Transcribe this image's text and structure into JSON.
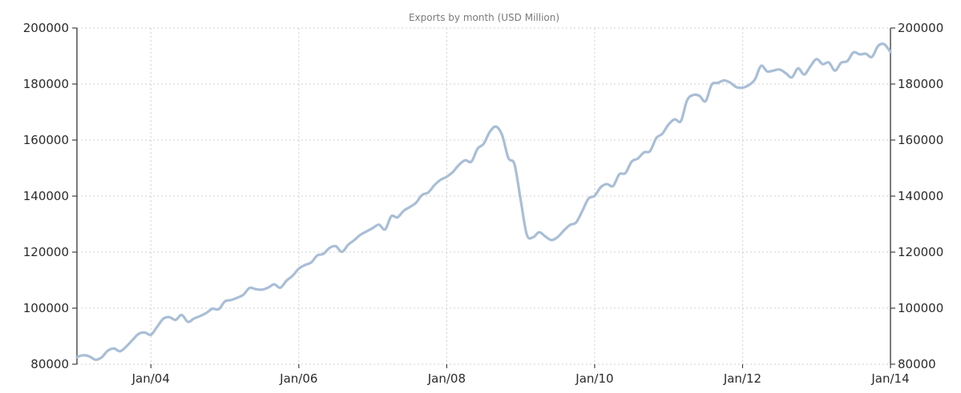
{
  "chart_data": {
    "type": "line",
    "title": "Exports by month (USD Million)",
    "xlabel": "",
    "ylabel": "",
    "xlim": [
      "2003-01",
      "2014-01"
    ],
    "ylim": [
      80000,
      200000
    ],
    "y_ticks": [
      80000,
      100000,
      120000,
      140000,
      160000,
      180000,
      200000
    ],
    "y_tick_labels": [
      "80000",
      "100000",
      "120000",
      "140000",
      "160000",
      "180000",
      "200000"
    ],
    "x_ticks": [
      "2004-01",
      "2006-01",
      "2008-01",
      "2010-01",
      "2012-01",
      "2014-01"
    ],
    "x_tick_labels": [
      "Jan/04",
      "Jan/06",
      "Jan/08",
      "Jan/10",
      "Jan/12",
      "Jan/14"
    ],
    "y_axis_sides": [
      "left",
      "right"
    ],
    "grid": true,
    "line_color": "#a9bed6",
    "series": [
      {
        "x": [
          "2003-01",
          "2003-02",
          "2003-03",
          "2003-04",
          "2003-05",
          "2003-06",
          "2003-07",
          "2003-08",
          "2003-09",
          "2003-10",
          "2003-11",
          "2003-12",
          "2004-01",
          "2004-02",
          "2004-03",
          "2004-04",
          "2004-05",
          "2004-06",
          "2004-07",
          "2004-08",
          "2004-09",
          "2004-10",
          "2004-11",
          "2004-12",
          "2005-01",
          "2005-02",
          "2005-03",
          "2005-04",
          "2005-05",
          "2005-06",
          "2005-07",
          "2005-08",
          "2005-09",
          "2005-10",
          "2005-11",
          "2005-12",
          "2006-01",
          "2006-02",
          "2006-03",
          "2006-04",
          "2006-05",
          "2006-06",
          "2006-07",
          "2006-08",
          "2006-09",
          "2006-10",
          "2006-11",
          "2006-12",
          "2007-01",
          "2007-02",
          "2007-03",
          "2007-04",
          "2007-05",
          "2007-06",
          "2007-07",
          "2007-08",
          "2007-09",
          "2007-10",
          "2007-11",
          "2007-12",
          "2008-01",
          "2008-02",
          "2008-03",
          "2008-04",
          "2008-05",
          "2008-06",
          "2008-07",
          "2008-08",
          "2008-09",
          "2008-10",
          "2008-11",
          "2008-12",
          "2009-01",
          "2009-02",
          "2009-03",
          "2009-04",
          "2009-05",
          "2009-06",
          "2009-07",
          "2009-08",
          "2009-09",
          "2009-10",
          "2009-11",
          "2009-12",
          "2010-01",
          "2010-02",
          "2010-03",
          "2010-04",
          "2010-05",
          "2010-06",
          "2010-07",
          "2010-08",
          "2010-09",
          "2010-10",
          "2010-11",
          "2010-12",
          "2011-01",
          "2011-02",
          "2011-03",
          "2011-04",
          "2011-05",
          "2011-06",
          "2011-07",
          "2011-08",
          "2011-09",
          "2011-10",
          "2011-11",
          "2011-12",
          "2012-01",
          "2012-02",
          "2012-03",
          "2012-04",
          "2012-05",
          "2012-06",
          "2012-07",
          "2012-08",
          "2012-09",
          "2012-10",
          "2012-11",
          "2012-12",
          "2013-01",
          "2013-02",
          "2013-03",
          "2013-04",
          "2013-05",
          "2013-06",
          "2013-07",
          "2013-08",
          "2013-09",
          "2013-10",
          "2013-11",
          "2013-12",
          "2014-01"
        ],
        "values": [
          82500,
          83200,
          82800,
          81600,
          82400,
          84800,
          85600,
          84600,
          86300,
          88600,
          90800,
          91300,
          90500,
          93300,
          96200,
          96800,
          95800,
          97600,
          95100,
          96300,
          97200,
          98300,
          99800,
          99600,
          102400,
          102900,
          103700,
          104800,
          107200,
          106800,
          106600,
          107300,
          108500,
          107300,
          109800,
          111600,
          114100,
          115400,
          116300,
          118800,
          119400,
          121500,
          122100,
          120100,
          122600,
          124300,
          126200,
          127400,
          128600,
          129800,
          128100,
          132800,
          132400,
          134700,
          136100,
          137600,
          140400,
          141300,
          143900,
          145800,
          146900,
          148600,
          151200,
          152800,
          152300,
          156900,
          158700,
          163000,
          164800,
          161700,
          153600,
          151300,
          138600,
          126200,
          125300,
          127100,
          125600,
          124300,
          125400,
          127700,
          129700,
          130600,
          134700,
          139100,
          140100,
          143200,
          144300,
          143600,
          147800,
          148200,
          152300,
          153400,
          155600,
          156100,
          160700,
          162300,
          165600,
          167400,
          166800,
          174200,
          176100,
          175800,
          173900,
          179800,
          180400,
          181300,
          180500,
          178900,
          178700,
          179600,
          181600,
          186500,
          184500,
          184800,
          185200,
          183900,
          182400,
          185600,
          183400,
          186300,
          188900,
          187100,
          187700,
          184800,
          187600,
          188200,
          191300,
          190600,
          190800,
          189700,
          193600,
          194200,
          191400
        ]
      }
    ]
  }
}
